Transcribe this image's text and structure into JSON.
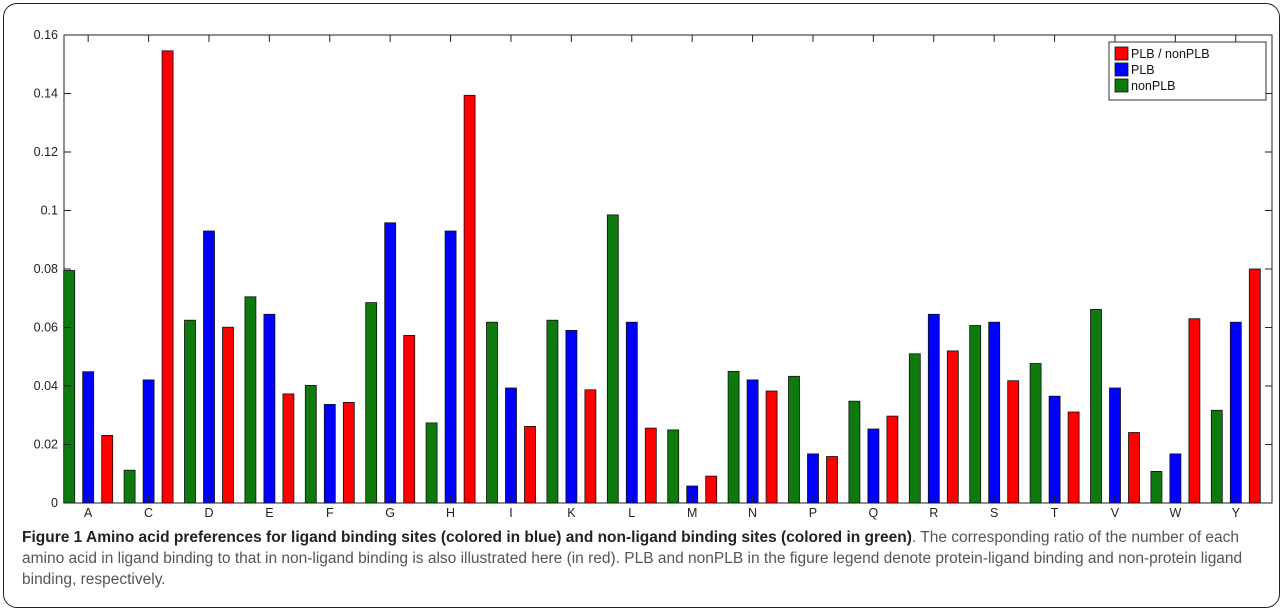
{
  "chart_data": {
    "type": "bar",
    "categories": [
      "A",
      "C",
      "D",
      "E",
      "F",
      "G",
      "H",
      "I",
      "K",
      "L",
      "M",
      "N",
      "P",
      "Q",
      "R",
      "S",
      "T",
      "V",
      "W",
      "Y"
    ],
    "series": [
      {
        "name": "nonPLB",
        "color": "#0e7a0e",
        "values": [
          0.0795,
          0.0112,
          0.0625,
          0.0705,
          0.0402,
          0.0685,
          0.0274,
          0.0618,
          0.0625,
          0.0985,
          0.025,
          0.045,
          0.0433,
          0.0348,
          0.051,
          0.0607,
          0.0477,
          0.0662,
          0.0108,
          0.0317
        ]
      },
      {
        "name": "PLB",
        "color": "#0000ff",
        "values": [
          0.0449,
          0.0421,
          0.093,
          0.0645,
          0.0337,
          0.0958,
          0.093,
          0.0393,
          0.059,
          0.0618,
          0.0058,
          0.0421,
          0.0168,
          0.0253,
          0.0645,
          0.0618,
          0.0365,
          0.0393,
          0.0168,
          0.0618
        ]
      },
      {
        "name": "PLB / nonPLB",
        "color": "#ff0000",
        "values": [
          0.0231,
          0.1546,
          0.0601,
          0.0373,
          0.0344,
          0.0573,
          0.1394,
          0.0262,
          0.0387,
          0.0256,
          0.0092,
          0.0383,
          0.0159,
          0.0297,
          0.052,
          0.0418,
          0.0311,
          0.0241,
          0.063,
          0.08
        ]
      }
    ],
    "legend_order": [
      "PLB / nonPLB",
      "PLB",
      "nonPLB"
    ],
    "legend_position": "top-right",
    "ylim": [
      0,
      0.16
    ],
    "yticks": [
      0,
      0.02,
      0.04,
      0.06,
      0.08,
      0.1,
      0.12,
      0.14,
      0.16
    ],
    "ytick_labels": [
      "0",
      "0.02",
      "0.04",
      "0.06",
      "0.08",
      "0.1",
      "0.12",
      "0.14",
      "0.16"
    ],
    "grid": false,
    "xlabel": "",
    "ylabel": "",
    "title": ""
  },
  "caption": {
    "title": "Figure 1 Amino acid preferences for ligand binding sites (colored in blue) and non-ligand binding sites (colored in green)",
    "body": ". The corresponding ratio of the number of each amino acid in ligand binding to that in non-ligand binding is also illustrated here (in red). PLB and nonPLB in the figure legend denote protein-ligand binding and non-protein ligand binding, respectively."
  }
}
